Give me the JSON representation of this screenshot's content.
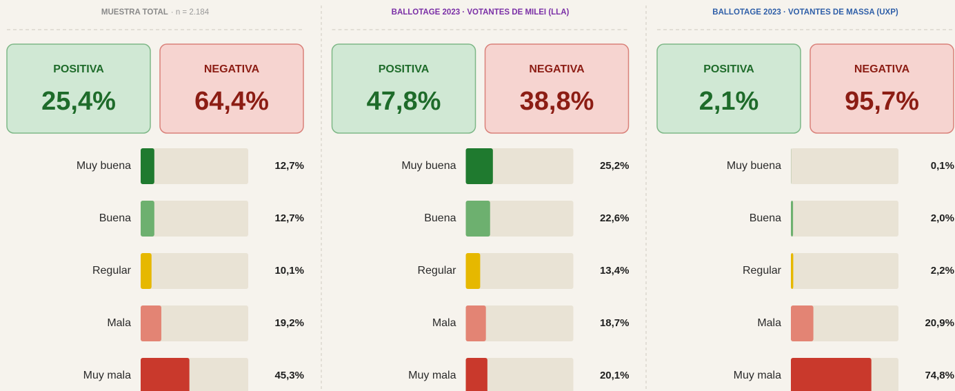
{
  "chart_data": [
    {
      "type": "bar",
      "title": "MUESTRA TOTAL",
      "subtitle": "· n = 2.184",
      "title_color": "#8a8a8a",
      "summary": {
        "labels": [
          "POSITIVA",
          "NEGATIVA"
        ],
        "values": [
          25.4,
          64.4
        ],
        "value_labels": [
          "25,4%",
          "64,4%"
        ]
      },
      "categories": [
        "Muy buena",
        "Buena",
        "Regular",
        "Mala",
        "Muy mala"
      ],
      "values": [
        12.7,
        12.7,
        10.1,
        19.2,
        45.3
      ],
      "value_labels": [
        "12,7%",
        "12,7%",
        "10,1%",
        "19,2%",
        "45,3%"
      ],
      "colors": [
        "#1f7a2f",
        "#6db06f",
        "#e6b800",
        "#e38474",
        "#c9392c"
      ],
      "xlim": [
        0,
        100
      ]
    },
    {
      "type": "bar",
      "title": "BALLOTAGE 2023 · VOTANTES DE MILEI (LLA)",
      "title_color": "#7a2fa6",
      "summary": {
        "labels": [
          "POSITIVA",
          "NEGATIVA"
        ],
        "values": [
          47.8,
          38.8
        ],
        "value_labels": [
          "47,8%",
          "38,8%"
        ]
      },
      "categories": [
        "Muy buena",
        "Buena",
        "Regular",
        "Mala",
        "Muy mala"
      ],
      "values": [
        25.2,
        22.6,
        13.4,
        18.7,
        20.1
      ],
      "value_labels": [
        "25,2%",
        "22,6%",
        "13,4%",
        "18,7%",
        "20,1%"
      ],
      "colors": [
        "#1f7a2f",
        "#6db06f",
        "#e6b800",
        "#e38474",
        "#c9392c"
      ],
      "xlim": [
        0,
        100
      ]
    },
    {
      "type": "bar",
      "title": "BALLOTAGE 2023 · VOTANTES DE MASSA (UXP)",
      "title_color": "#2f5fa8",
      "summary": {
        "labels": [
          "POSITIVA",
          "NEGATIVA"
        ],
        "values": [
          2.1,
          95.7
        ],
        "value_labels": [
          "2,1%",
          "95,7%"
        ]
      },
      "categories": [
        "Muy buena",
        "Buena",
        "Regular",
        "Mala",
        "Muy mala"
      ],
      "values": [
        0.1,
        2.0,
        2.2,
        20.9,
        74.8
      ],
      "value_labels": [
        "0,1%",
        "2,0%",
        "2,2%",
        "20,9%",
        "74,8%"
      ],
      "colors": [
        "#1f7a2f",
        "#6db06f",
        "#e6b800",
        "#e38474",
        "#c9392c"
      ],
      "xlim": [
        0,
        100
      ]
    }
  ]
}
